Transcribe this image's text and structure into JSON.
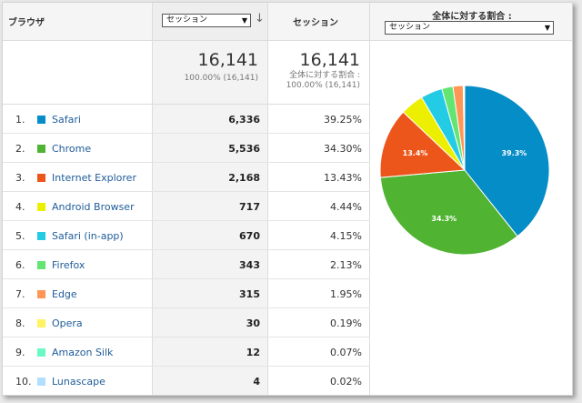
{
  "header": {
    "browser": "ブラウザ",
    "dimension_select": "セッション",
    "sessions": "セッション",
    "chart_title": "全体に対する割合 :",
    "chart_select": "セッション"
  },
  "totals": {
    "dim_value": "16,141",
    "dim_sub": "100.00% (16,141)",
    "sess_value": "16,141",
    "sess_sub1": "全体に対する割合 :",
    "sess_sub2": "100.00% (16,141)"
  },
  "rows": [
    {
      "index": "1.",
      "name": "Safari",
      "value": "6,336",
      "pct": "39.25%",
      "color": "#058dc7"
    },
    {
      "index": "2.",
      "name": "Chrome",
      "value": "5,536",
      "pct": "34.30%",
      "color": "#50b432"
    },
    {
      "index": "3.",
      "name": "Internet Explorer",
      "value": "2,168",
      "pct": "13.43%",
      "color": "#ed561b"
    },
    {
      "index": "4.",
      "name": "Android Browser",
      "value": "717",
      "pct": "4.44%",
      "color": "#edef00"
    },
    {
      "index": "5.",
      "name": "Safari (in-app)",
      "value": "670",
      "pct": "4.15%",
      "color": "#24cbe5"
    },
    {
      "index": "6.",
      "name": "Firefox",
      "value": "343",
      "pct": "2.13%",
      "color": "#64e572"
    },
    {
      "index": "7.",
      "name": "Edge",
      "value": "315",
      "pct": "1.95%",
      "color": "#ff9655"
    },
    {
      "index": "8.",
      "name": "Opera",
      "value": "30",
      "pct": "0.19%",
      "color": "#fff263"
    },
    {
      "index": "9.",
      "name": "Amazon Silk",
      "value": "12",
      "pct": "0.07%",
      "color": "#6af9c4"
    },
    {
      "index": "10.",
      "name": "Lunascape",
      "value": "4",
      "pct": "0.02%",
      "color": "#b2deff"
    }
  ],
  "chart_data": {
    "type": "pie",
    "categories": [
      "Safari",
      "Chrome",
      "Internet Explorer",
      "Android Browser",
      "Safari (in-app)",
      "Firefox",
      "Edge",
      "Opera",
      "Amazon Silk",
      "Lunascape"
    ],
    "values": [
      39.25,
      34.3,
      13.43,
      4.44,
      4.15,
      2.13,
      1.95,
      0.19,
      0.07,
      0.02
    ],
    "colors": [
      "#058dc7",
      "#50b432",
      "#ed561b",
      "#edef00",
      "#24cbe5",
      "#64e572",
      "#ff9655",
      "#fff263",
      "#6af9c4",
      "#b2deff"
    ],
    "slice_labels": [
      "39.3%",
      "34.3%",
      "13.4%",
      "",
      "",
      "",
      "",
      "",
      "",
      ""
    ]
  }
}
